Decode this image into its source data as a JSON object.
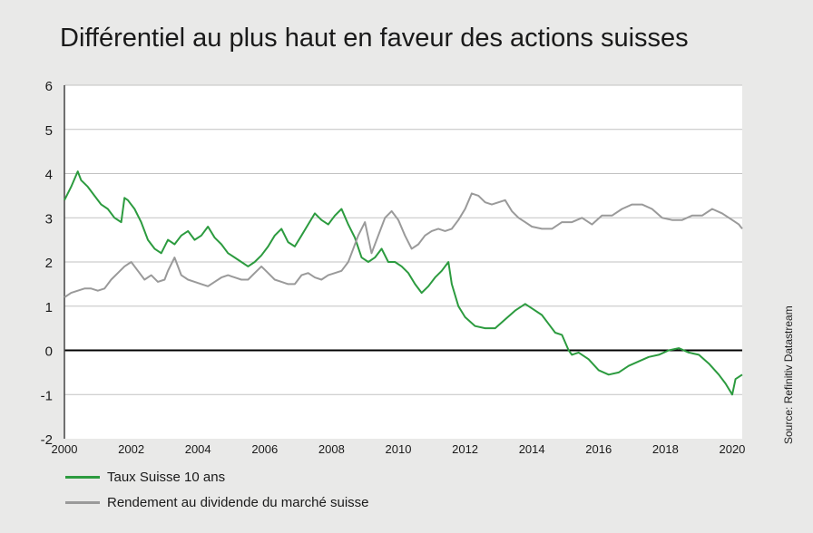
{
  "title": "Différentiel au plus haut en faveur des actions suisses",
  "source": "Source: Refinitiv Datastream",
  "chart_data": {
    "type": "line",
    "title": "Différentiel au plus haut en faveur des actions suisses",
    "xlabel": "",
    "ylabel": "",
    "xlim": [
      2000,
      2020.3
    ],
    "ylim": [
      -2,
      6
    ],
    "x_ticks": [
      2000,
      2002,
      2004,
      2006,
      2008,
      2010,
      2012,
      2014,
      2016,
      2018,
      2020
    ],
    "y_ticks": [
      6,
      5,
      4,
      3,
      2,
      1,
      0,
      -1,
      -2
    ],
    "grid": true,
    "zero_line": true,
    "legend_position": "bottom-left",
    "series": [
      {
        "name": "Taux Suisse 10 ans",
        "color": "#2c9b3f",
        "x": [
          2000.0,
          2000.2,
          2000.4,
          2000.5,
          2000.7,
          2000.9,
          2001.1,
          2001.3,
          2001.5,
          2001.7,
          2001.8,
          2001.9,
          2002.1,
          2002.3,
          2002.5,
          2002.7,
          2002.9,
          2003.1,
          2003.3,
          2003.5,
          2003.7,
          2003.9,
          2004.1,
          2004.3,
          2004.5,
          2004.7,
          2004.9,
          2005.1,
          2005.3,
          2005.5,
          2005.7,
          2005.9,
          2006.1,
          2006.3,
          2006.5,
          2006.7,
          2006.9,
          2007.1,
          2007.3,
          2007.5,
          2007.7,
          2007.9,
          2008.1,
          2008.3,
          2008.5,
          2008.7,
          2008.9,
          2009.1,
          2009.3,
          2009.5,
          2009.7,
          2009.9,
          2010.1,
          2010.3,
          2010.5,
          2010.7,
          2010.9,
          2011.1,
          2011.3,
          2011.5,
          2011.6,
          2011.8,
          2012.0,
          2012.3,
          2012.6,
          2012.9,
          2013.2,
          2013.5,
          2013.8,
          2014.0,
          2014.3,
          2014.5,
          2014.7,
          2014.9,
          2015.1,
          2015.2,
          2015.4,
          2015.7,
          2016.0,
          2016.3,
          2016.6,
          2016.9,
          2017.2,
          2017.5,
          2017.8,
          2018.1,
          2018.4,
          2018.7,
          2019.0,
          2019.3,
          2019.6,
          2019.8,
          2020.0,
          2020.1,
          2020.3
        ],
        "values": [
          3.4,
          3.7,
          4.05,
          3.85,
          3.7,
          3.5,
          3.3,
          3.2,
          3.0,
          2.9,
          3.45,
          3.4,
          3.2,
          2.9,
          2.5,
          2.3,
          2.2,
          2.5,
          2.4,
          2.6,
          2.7,
          2.5,
          2.6,
          2.8,
          2.55,
          2.4,
          2.2,
          2.1,
          2.0,
          1.9,
          2.0,
          2.15,
          2.35,
          2.6,
          2.75,
          2.45,
          2.35,
          2.6,
          2.85,
          3.1,
          2.95,
          2.85,
          3.05,
          3.2,
          2.85,
          2.55,
          2.1,
          2.0,
          2.1,
          2.3,
          2.0,
          2.0,
          1.9,
          1.75,
          1.5,
          1.3,
          1.45,
          1.65,
          1.8,
          2.0,
          1.5,
          1.0,
          0.75,
          0.55,
          0.5,
          0.5,
          0.7,
          0.9,
          1.05,
          0.95,
          0.8,
          0.6,
          0.4,
          0.35,
          0.0,
          -0.1,
          -0.05,
          -0.2,
          -0.45,
          -0.55,
          -0.5,
          -0.35,
          -0.25,
          -0.15,
          -0.1,
          0.0,
          0.05,
          -0.05,
          -0.1,
          -0.3,
          -0.55,
          -0.75,
          -1.0,
          -0.65,
          -0.55
        ]
      },
      {
        "name": "Rendement au dividende du marché suisse",
        "color": "#9a9a9a",
        "x": [
          2000.0,
          2000.2,
          2000.4,
          2000.6,
          2000.8,
          2001.0,
          2001.2,
          2001.4,
          2001.6,
          2001.8,
          2002.0,
          2002.2,
          2002.4,
          2002.6,
          2002.8,
          2003.0,
          2003.1,
          2003.3,
          2003.5,
          2003.7,
          2003.9,
          2004.1,
          2004.3,
          2004.5,
          2004.7,
          2004.9,
          2005.1,
          2005.3,
          2005.5,
          2005.7,
          2005.9,
          2006.1,
          2006.3,
          2006.5,
          2006.7,
          2006.9,
          2007.1,
          2007.3,
          2007.5,
          2007.7,
          2007.9,
          2008.1,
          2008.3,
          2008.5,
          2008.6,
          2008.8,
          2009.0,
          2009.2,
          2009.4,
          2009.6,
          2009.8,
          2010.0,
          2010.2,
          2010.4,
          2010.6,
          2010.8,
          2011.0,
          2011.2,
          2011.4,
          2011.6,
          2011.8,
          2012.0,
          2012.2,
          2012.4,
          2012.6,
          2012.8,
          2013.0,
          2013.2,
          2013.4,
          2013.6,
          2013.8,
          2014.0,
          2014.3,
          2014.6,
          2014.9,
          2015.2,
          2015.5,
          2015.8,
          2016.1,
          2016.4,
          2016.7,
          2017.0,
          2017.3,
          2017.6,
          2017.9,
          2018.2,
          2018.5,
          2018.8,
          2019.1,
          2019.4,
          2019.7,
          2020.0,
          2020.2,
          2020.3
        ],
        "values": [
          1.2,
          1.3,
          1.35,
          1.4,
          1.4,
          1.35,
          1.4,
          1.6,
          1.75,
          1.9,
          2.0,
          1.8,
          1.6,
          1.7,
          1.55,
          1.6,
          1.8,
          2.1,
          1.7,
          1.6,
          1.55,
          1.5,
          1.45,
          1.55,
          1.65,
          1.7,
          1.65,
          1.6,
          1.6,
          1.75,
          1.9,
          1.75,
          1.6,
          1.55,
          1.5,
          1.5,
          1.7,
          1.75,
          1.65,
          1.6,
          1.7,
          1.75,
          1.8,
          2.0,
          2.2,
          2.6,
          2.9,
          2.2,
          2.6,
          3.0,
          3.15,
          2.95,
          2.6,
          2.3,
          2.4,
          2.6,
          2.7,
          2.75,
          2.7,
          2.75,
          2.95,
          3.2,
          3.55,
          3.5,
          3.35,
          3.3,
          3.35,
          3.4,
          3.15,
          3.0,
          2.9,
          2.8,
          2.75,
          2.75,
          2.9,
          2.9,
          3.0,
          2.85,
          3.05,
          3.05,
          3.2,
          3.3,
          3.3,
          3.2,
          3.0,
          2.95,
          2.95,
          3.05,
          3.05,
          3.2,
          3.1,
          2.95,
          2.85,
          2.75
        ]
      }
    ]
  }
}
